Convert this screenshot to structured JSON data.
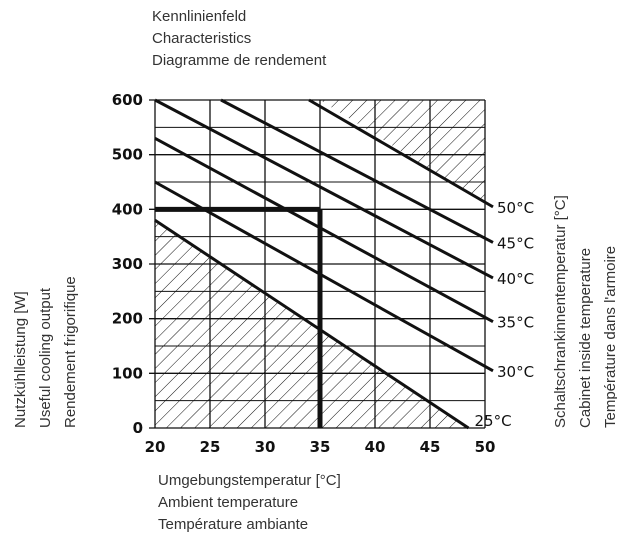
{
  "chart_data": {
    "type": "line",
    "title": [
      "Kennlinienfeld",
      "Characteristics",
      "Diagramme de rendement"
    ],
    "xlabel": [
      "Umgebungstemperatur [°C]",
      "Ambient temperature",
      "Température ambiante"
    ],
    "ylabel": [
      "Nutzkühlleistung [W]",
      "Useful cooling output",
      "Rendement frigorifique"
    ],
    "ylabel_right": [
      "Schaltschrankinnentemperatur [°C]",
      "Cabinet inside temperature",
      "Température dans l'armoire"
    ],
    "xlim": [
      20,
      50
    ],
    "ylim": [
      0,
      600
    ],
    "xticks": [
      "20",
      "25",
      "30",
      "35",
      "40",
      "45",
      "50"
    ],
    "yticks": [
      "0",
      "100",
      "200",
      "300",
      "400",
      "500",
      "600"
    ],
    "grid": true,
    "series": [
      {
        "name": "25°C",
        "x": [
          20,
          48.5
        ],
        "y": [
          380,
          0
        ]
      },
      {
        "name": "30°C",
        "x": [
          20,
          50
        ],
        "y": [
          450,
          110
        ]
      },
      {
        "name": "35°C",
        "x": [
          20,
          50
        ],
        "y": [
          530,
          200
        ]
      },
      {
        "name": "40°C",
        "x": [
          20,
          50
        ],
        "y": [
          600,
          280
        ]
      },
      {
        "name": "45°C",
        "x": [
          26,
          50
        ],
        "y": [
          600,
          345
        ]
      },
      {
        "name": "50°C",
        "x": [
          34,
          50
        ],
        "y": [
          600,
          410
        ]
      }
    ],
    "operating_point": {
      "x": 35,
      "y": 400
    },
    "hatched_regions": [
      {
        "position": "top-right",
        "polygon": [
          [
            35,
            600
          ],
          [
            50,
            600
          ],
          [
            50,
            410
          ]
        ]
      },
      {
        "position": "bottom-left",
        "polygon": [
          [
            20,
            0
          ],
          [
            20,
            380
          ],
          [
            48.5,
            0
          ]
        ]
      }
    ]
  }
}
